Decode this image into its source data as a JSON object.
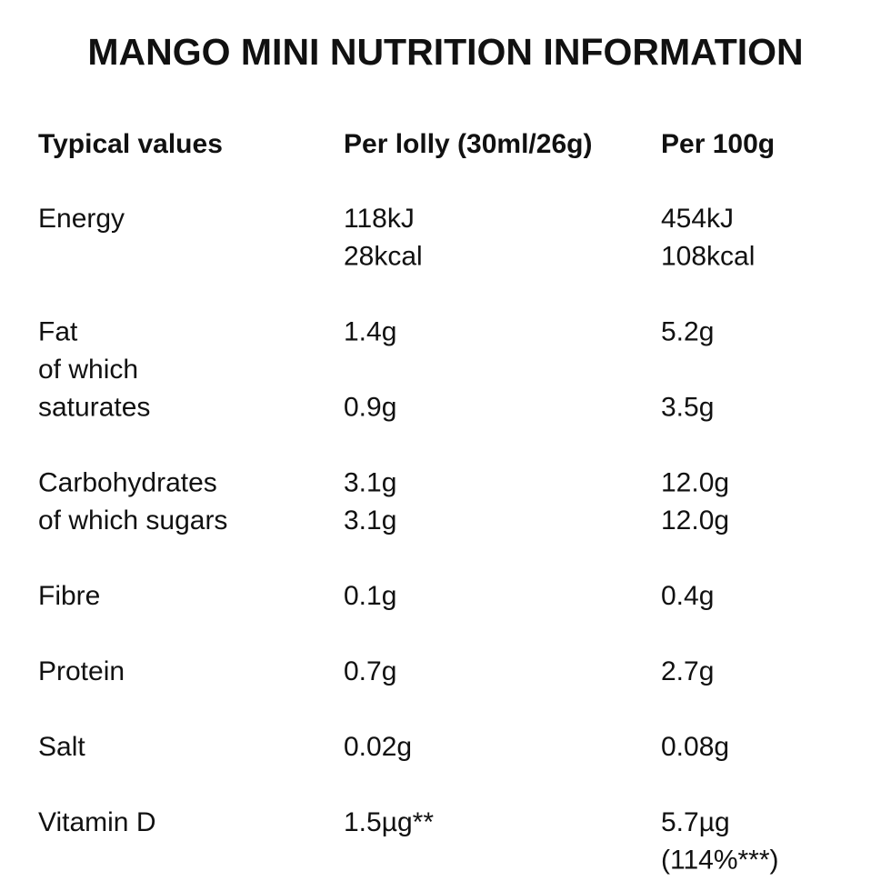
{
  "title": "MANGO MINI NUTRITION INFORMATION",
  "table": {
    "header": [
      "Typical values",
      "Per lolly (30ml/26g)",
      "Per 100g"
    ],
    "rows": [
      {
        "label": [
          "Energy"
        ],
        "per_lolly": [
          "118kJ",
          "28kcal"
        ],
        "per_100g": [
          "454kJ",
          "108kcal"
        ]
      },
      {
        "label": [
          "Fat",
          "of which",
          "saturates"
        ],
        "per_lolly": [
          "1.4g",
          null,
          "0.9g"
        ],
        "per_100g": [
          "5.2g",
          null,
          "3.5g"
        ]
      },
      {
        "label": [
          "Carbohydrates",
          "of which sugars"
        ],
        "per_lolly": [
          "3.1g",
          "3.1g"
        ],
        "per_100g": [
          "12.0g",
          "12.0g"
        ]
      },
      {
        "label": [
          "Fibre"
        ],
        "per_lolly": [
          "0.1g"
        ],
        "per_100g": [
          "0.4g"
        ]
      },
      {
        "label": [
          "Protein"
        ],
        "per_lolly": [
          "0.7g"
        ],
        "per_100g": [
          "2.7g"
        ]
      },
      {
        "label": [
          "Salt"
        ],
        "per_lolly": [
          "0.02g"
        ],
        "per_100g": [
          "0.08g"
        ]
      },
      {
        "label": [
          "Vitamin D"
        ],
        "per_lolly": [
          "1.5µg**"
        ],
        "per_100g": [
          "5.7µg",
          "(114%***)"
        ]
      }
    ]
  }
}
